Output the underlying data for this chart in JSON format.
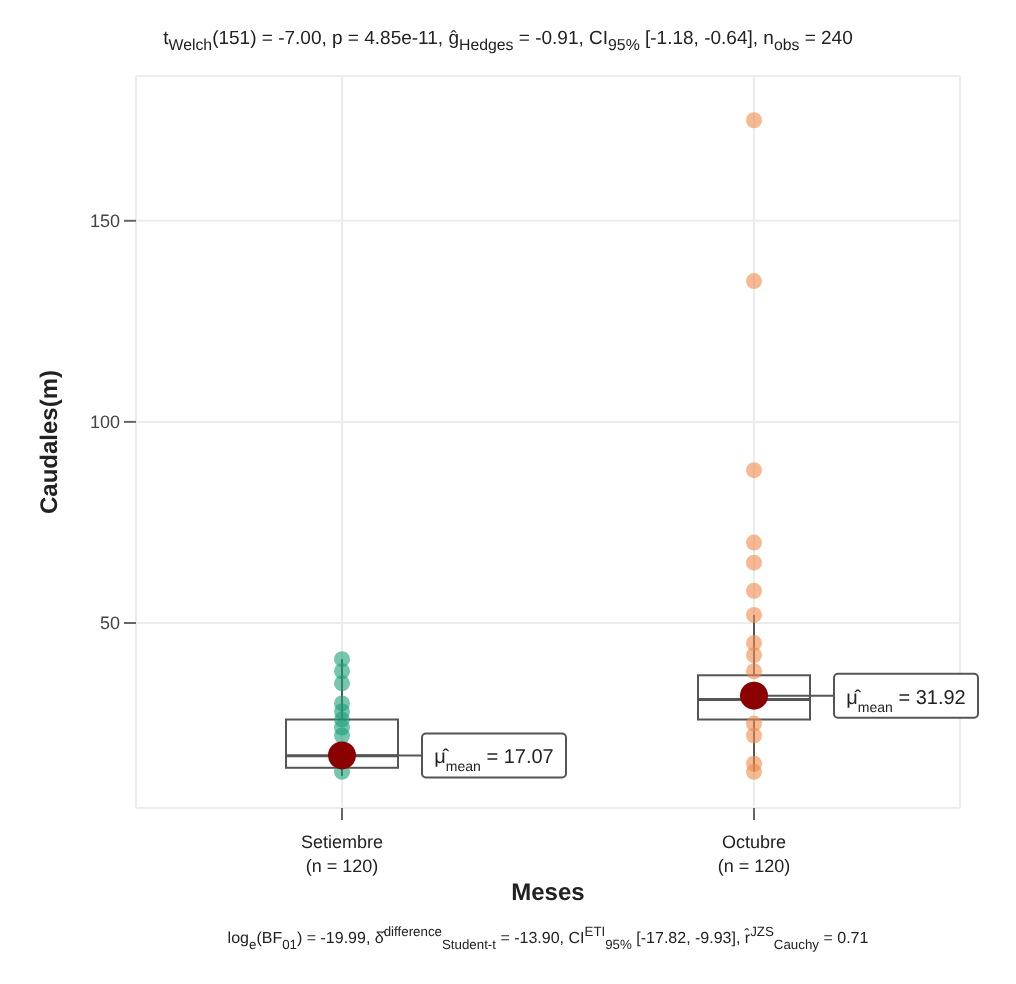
{
  "chart_data": {
    "type": "box",
    "title": "t$_{Welch}$(151) = -7.00, p = 4.85e-11, ĝ$_{Hedges}$ = -0.91, CI$_{95%}$ [-1.18, -0.64], n$_{obs}$ = 240",
    "annotations": [
      "log$_{e}$(BF$_{01}$) = -19.99, δ̂$^{difference}$$_{Student-t}$ = -13.90, CI$^{ETI}$$_{95%}$ [-17.82, -9.93], r̂$^{JZS}$$_{Cauchy}$ = 0.71"
    ],
    "xlabel": "Meses",
    "ylabel": "Caudales(m)",
    "categories": [
      "Setiembre\n(n = 120)",
      "Octubre\n(n = 120)"
    ],
    "ylim": [
      4,
      186
    ],
    "yticks": [
      50,
      100,
      150
    ],
    "grid": true,
    "series": [
      {
        "color": "#555555",
        "boxes": [
          {
            "low": 12,
            "q1": 14,
            "median": 17,
            "q3": 26,
            "high": 41
          },
          {
            "low": 13,
            "q1": 26,
            "median": 31,
            "q3": 37,
            "high": 52
          }
        ]
      },
      {
        "type": "scatter",
        "color": "#1b9e77",
        "x": [
          "Setiembre\n(n = 120)",
          "Setiembre\n(n = 120)",
          "Setiembre\n(n = 120)",
          "Setiembre\n(n = 120)",
          "Setiembre\n(n = 120)",
          "Setiembre\n(n = 120)",
          "Setiembre\n(n = 120)",
          "Setiembre\n(n = 120)",
          "Setiembre\n(n = 120)"
        ],
        "values": [
          41,
          38,
          35,
          30,
          28,
          26,
          24,
          22,
          13
        ]
      },
      {
        "type": "scatter",
        "color": "#f08a4b",
        "x": [
          "Octubre\n(n = 120)",
          "Octubre\n(n = 120)",
          "Octubre\n(n = 120)",
          "Octubre\n(n = 120)",
          "Octubre\n(n = 120)",
          "Octubre\n(n = 120)",
          "Octubre\n(n = 120)",
          "Octubre\n(n = 120)",
          "Octubre\n(n = 120)",
          "Octubre\n(n = 120)",
          "Octubre\n(n = 120)",
          "Octubre\n(n = 120)",
          "Octubre\n(n = 120)",
          "Octubre\n(n = 120)"
        ],
        "values": [
          175,
          135,
          88,
          70,
          65,
          58,
          52,
          45,
          42,
          38,
          25,
          22,
          15,
          13
        ]
      },
      {
        "type": "scatter",
        "color": "#8b0000",
        "x": [
          "Setiembre\n(n = 120)",
          "Octubre\n(n = 120)"
        ],
        "values": [
          17.07,
          31.92
        ],
        "value_labels": [
          "μ̂$_{mean}$ = 17.07",
          "μ̂$_{mean}$ = 31.92"
        ]
      }
    ]
  }
}
